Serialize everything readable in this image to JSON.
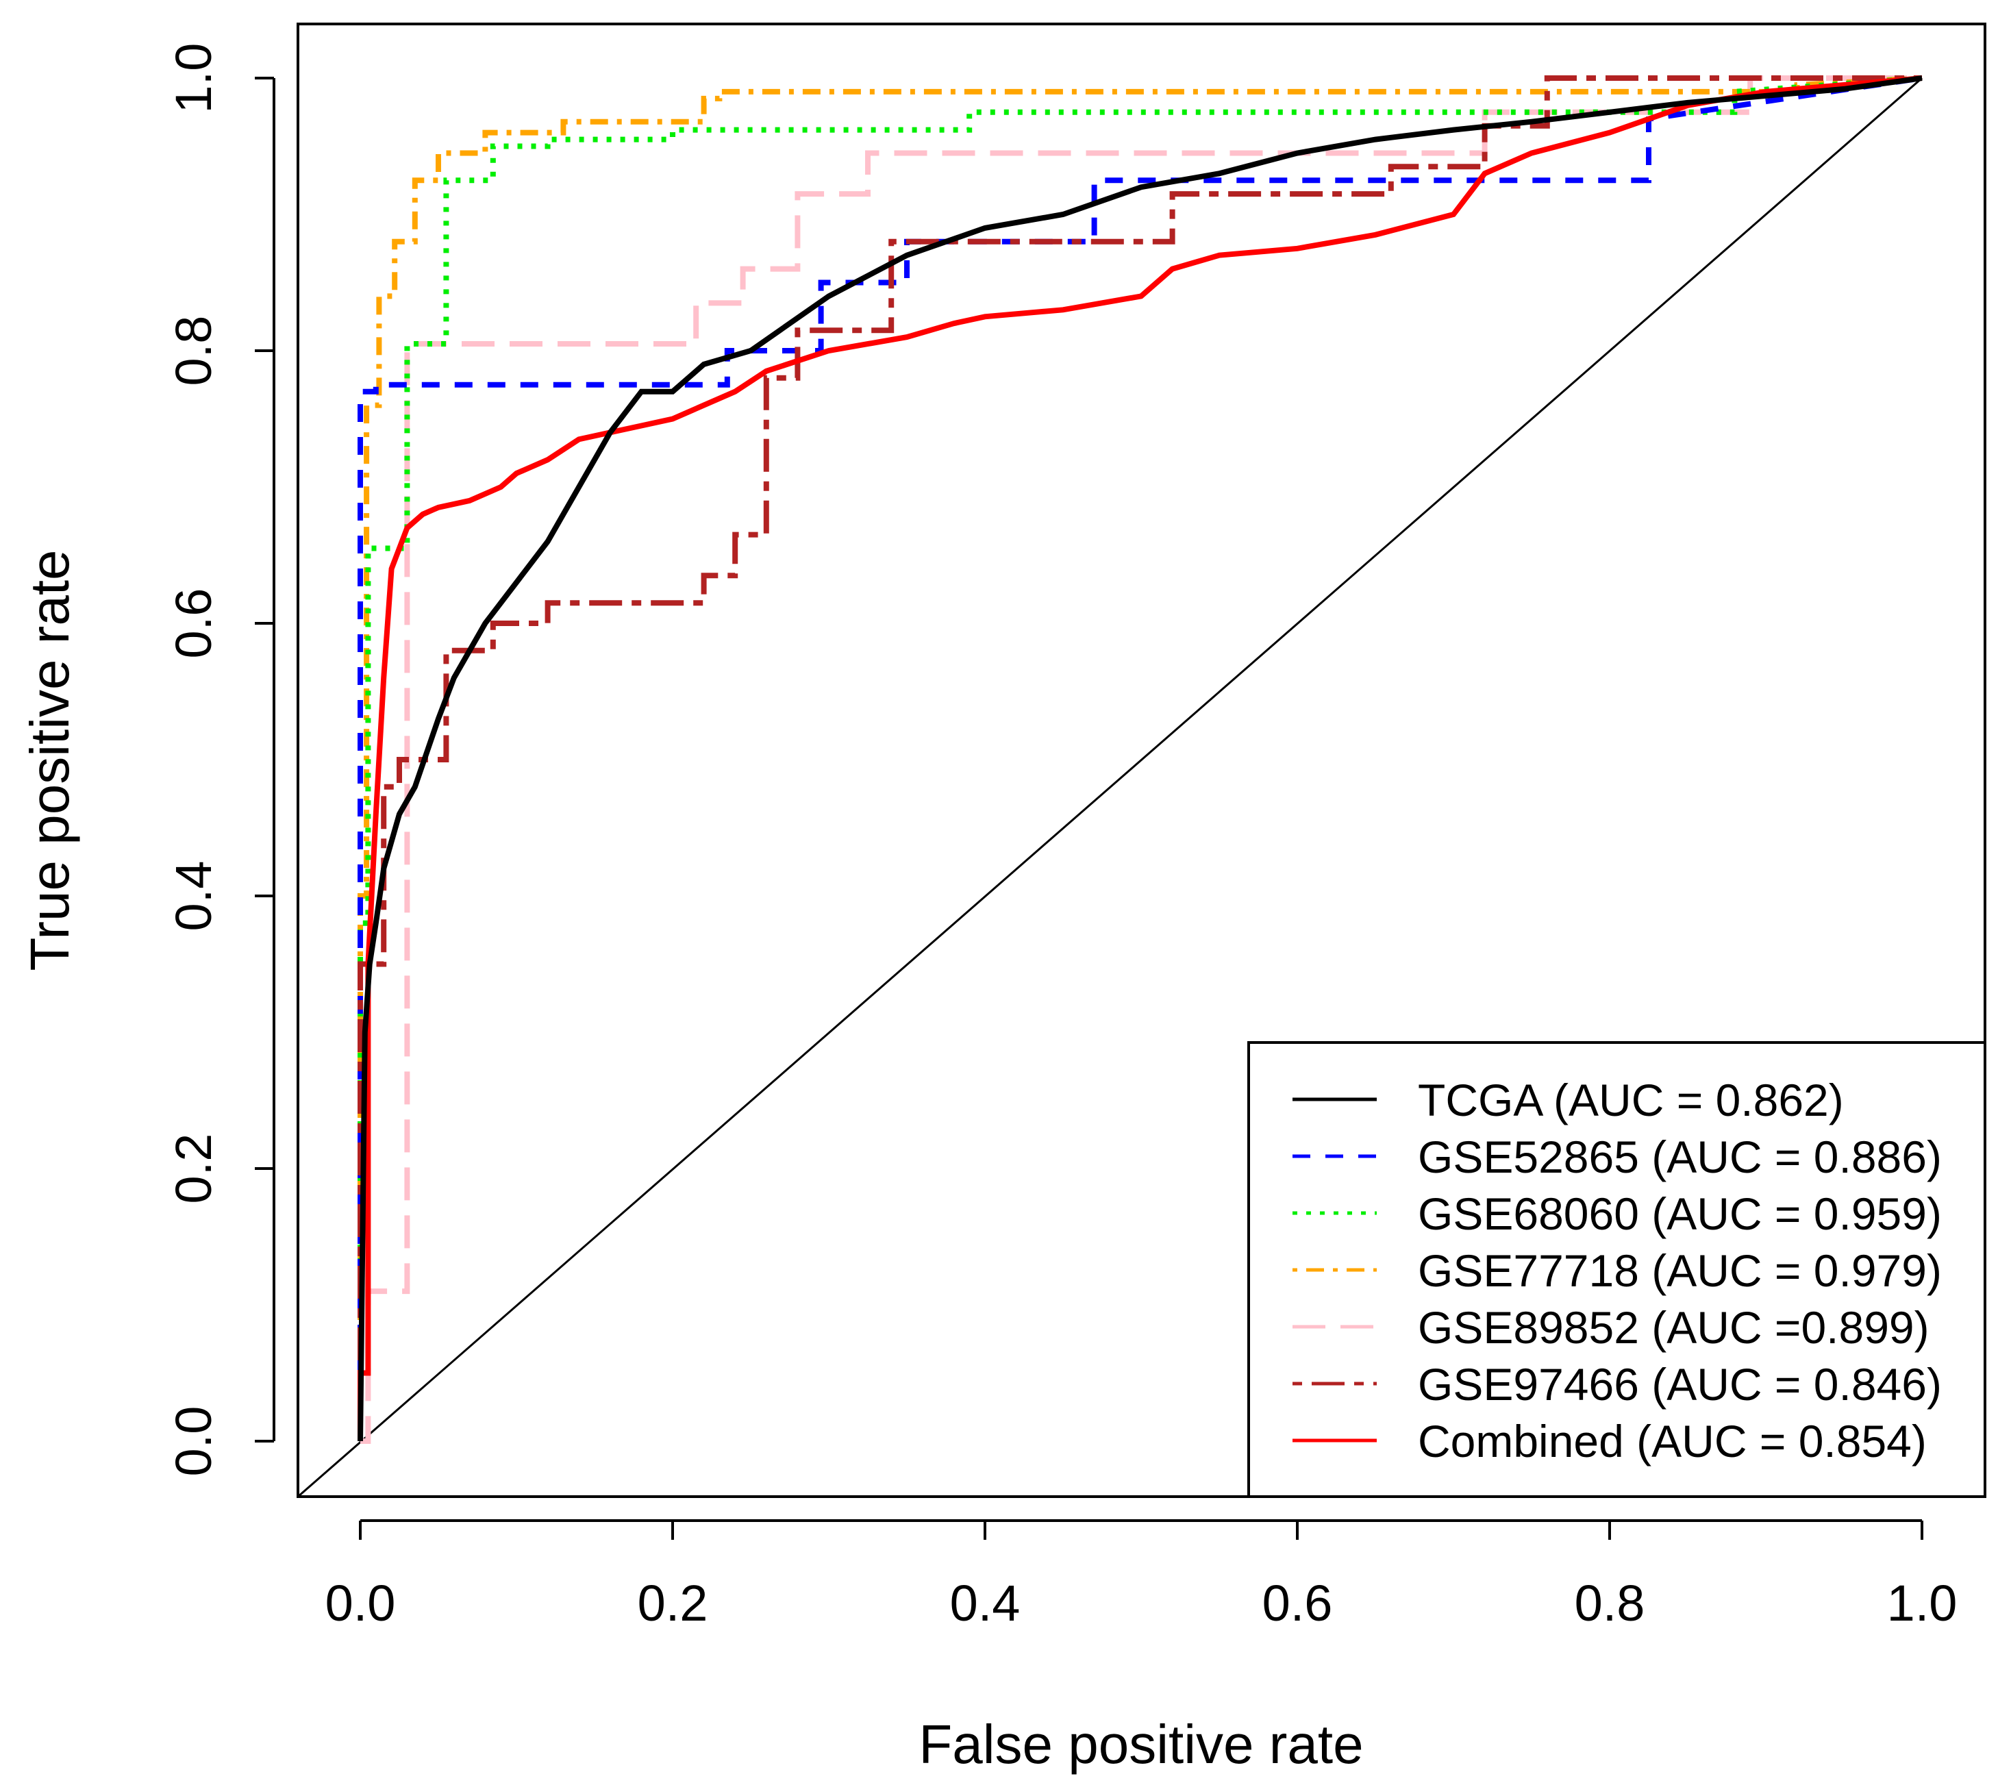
{
  "chart_data": {
    "type": "line",
    "xlabel": "False positive rate",
    "ylabel": "True positive rate",
    "xlim": [
      0,
      1
    ],
    "ylim": [
      0,
      1
    ],
    "xticks": [
      "0.0",
      "0.2",
      "0.4",
      "0.6",
      "0.8",
      "1.0"
    ],
    "yticks": [
      "0.0",
      "0.2",
      "0.4",
      "0.6",
      "0.8",
      "1.0"
    ],
    "grid": false,
    "legend_position": "bottom-right",
    "reference_line": {
      "x": [
        0,
        1
      ],
      "y": [
        0,
        1
      ],
      "color": "#000000"
    },
    "series": [
      {
        "name": "TCGA (AUC = 0.862)",
        "color": "#000000",
        "dash": "solid",
        "x": [
          0,
          0.003,
          0.006,
          0.01,
          0.015,
          0.025,
          0.035,
          0.05,
          0.06,
          0.08,
          0.1,
          0.12,
          0.14,
          0.16,
          0.18,
          0.2,
          0.22,
          0.25,
          0.3,
          0.35,
          0.4,
          0.45,
          0.5,
          0.55,
          0.6,
          0.65,
          0.7,
          0.75,
          0.8,
          0.85,
          0.9,
          0.95,
          1
        ],
        "y": [
          0,
          0.3,
          0.35,
          0.38,
          0.42,
          0.46,
          0.48,
          0.53,
          0.56,
          0.6,
          0.63,
          0.66,
          0.7,
          0.74,
          0.77,
          0.77,
          0.79,
          0.8,
          0.84,
          0.87,
          0.89,
          0.9,
          0.92,
          0.93,
          0.945,
          0.955,
          0.962,
          0.968,
          0.975,
          0.982,
          0.987,
          0.992,
          1
        ]
      },
      {
        "name": "GSE52865 (AUC = 0.886)",
        "color": "#0000ff",
        "dash": "dashed",
        "x": [
          0,
          0,
          0.01,
          0.01,
          0.235,
          0.235,
          0.295,
          0.295,
          0.35,
          0.35,
          0.47,
          0.47,
          0.825,
          0.825,
          1
        ],
        "y": [
          0,
          0.77,
          0.77,
          0.775,
          0.775,
          0.8,
          0.8,
          0.85,
          0.85,
          0.88,
          0.88,
          0.925,
          0.925,
          0.97,
          1
        ]
      },
      {
        "name": "GSE68060 (AUC = 0.959)",
        "color": "#00ee00",
        "dash": "dotted",
        "x": [
          0,
          0,
          0.005,
          0.005,
          0.03,
          0.03,
          0.055,
          0.055,
          0.085,
          0.085,
          0.12,
          0.12,
          0.2,
          0.2,
          0.39,
          0.39,
          0.88,
          0.88,
          1
        ],
        "y": [
          0,
          0.38,
          0.38,
          0.655,
          0.655,
          0.805,
          0.805,
          0.925,
          0.925,
          0.95,
          0.95,
          0.955,
          0.955,
          0.962,
          0.962,
          0.975,
          0.975,
          0.99,
          1
        ]
      },
      {
        "name": "GSE77718 (AUC = 0.979)",
        "color": "#ffa500",
        "dash": "dashdot",
        "x": [
          0,
          0,
          0.004,
          0.004,
          0.012,
          0.012,
          0.022,
          0.022,
          0.035,
          0.035,
          0.05,
          0.05,
          0.08,
          0.08,
          0.13,
          0.13,
          0.22,
          0.22,
          0.23,
          0.23,
          0.92,
          0.92,
          1
        ],
        "y": [
          0,
          0.4,
          0.4,
          0.76,
          0.76,
          0.84,
          0.84,
          0.88,
          0.88,
          0.925,
          0.925,
          0.945,
          0.945,
          0.96,
          0.96,
          0.968,
          0.968,
          0.985,
          0.985,
          0.99,
          0.99,
          0.995,
          1
        ]
      },
      {
        "name": "GSE89852 (AUC =0.899)",
        "color": "#ffc0cb",
        "dash": "longdash",
        "x": [
          0,
          0.005,
          0.005,
          0.03,
          0.03,
          0.215,
          0.215,
          0.245,
          0.245,
          0.28,
          0.28,
          0.325,
          0.325,
          0.72,
          0.72,
          0.89,
          0.89,
          1
        ],
        "y": [
          0,
          0,
          0.11,
          0.11,
          0.805,
          0.805,
          0.835,
          0.835,
          0.86,
          0.86,
          0.915,
          0.915,
          0.945,
          0.945,
          0.975,
          0.975,
          1,
          1
        ]
      },
      {
        "name": "GSE97466 (AUC = 0.846)",
        "color": "#b22222",
        "dash": "twodash",
        "x": [
          0,
          0,
          0.015,
          0.015,
          0.025,
          0.025,
          0.055,
          0.055,
          0.085,
          0.085,
          0.12,
          0.12,
          0.22,
          0.22,
          0.24,
          0.24,
          0.26,
          0.26,
          0.28,
          0.28,
          0.34,
          0.34,
          0.52,
          0.52,
          0.66,
          0.66,
          0.72,
          0.72,
          0.76,
          0.76,
          1
        ],
        "y": [
          0,
          0.35,
          0.35,
          0.48,
          0.48,
          0.5,
          0.5,
          0.58,
          0.58,
          0.6,
          0.6,
          0.615,
          0.615,
          0.635,
          0.635,
          0.665,
          0.665,
          0.78,
          0.78,
          0.815,
          0.815,
          0.88,
          0.88,
          0.915,
          0.915,
          0.935,
          0.935,
          0.965,
          0.965,
          1,
          1
        ]
      },
      {
        "name": "Combined (AUC = 0.854)",
        "color": "#ff0000",
        "dash": "solid",
        "x": [
          0,
          0,
          0.005,
          0.005,
          0.01,
          0.015,
          0.02,
          0.03,
          0.04,
          0.05,
          0.07,
          0.09,
          0.1,
          0.12,
          0.14,
          0.16,
          0.18,
          0.2,
          0.22,
          0.24,
          0.26,
          0.3,
          0.35,
          0.38,
          0.4,
          0.45,
          0.5,
          0.52,
          0.55,
          0.6,
          0.65,
          0.7,
          0.72,
          0.75,
          0.8,
          0.85,
          0.9,
          1
        ],
        "y": [
          0,
          0.05,
          0.05,
          0.35,
          0.46,
          0.56,
          0.64,
          0.67,
          0.68,
          0.685,
          0.69,
          0.7,
          0.71,
          0.72,
          0.735,
          0.74,
          0.745,
          0.75,
          0.76,
          0.77,
          0.785,
          0.8,
          0.81,
          0.82,
          0.825,
          0.83,
          0.84,
          0.86,
          0.87,
          0.875,
          0.885,
          0.9,
          0.93,
          0.945,
          0.96,
          0.98,
          0.99,
          1
        ]
      }
    ]
  }
}
